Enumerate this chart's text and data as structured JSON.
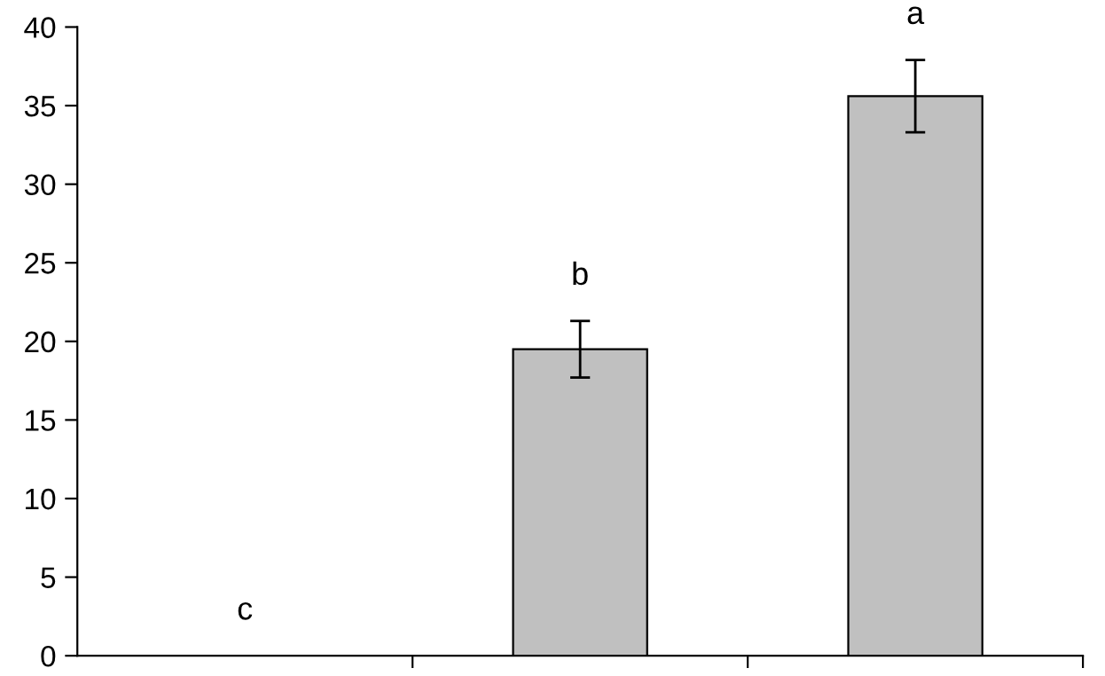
{
  "chart_data": {
    "type": "bar",
    "categories": [
      null,
      null,
      null
    ],
    "values": [
      0,
      19.5,
      35.6
    ],
    "errors": [
      null,
      1.8,
      2.3
    ],
    "color": "#c0c0c0",
    "ylim": [
      0,
      40
    ],
    "yticks": [
      0,
      5,
      10,
      15,
      20,
      25,
      30,
      35,
      40
    ],
    "annotations": [
      "c",
      "b",
      "a"
    ],
    "grid": false,
    "legend": false
  }
}
